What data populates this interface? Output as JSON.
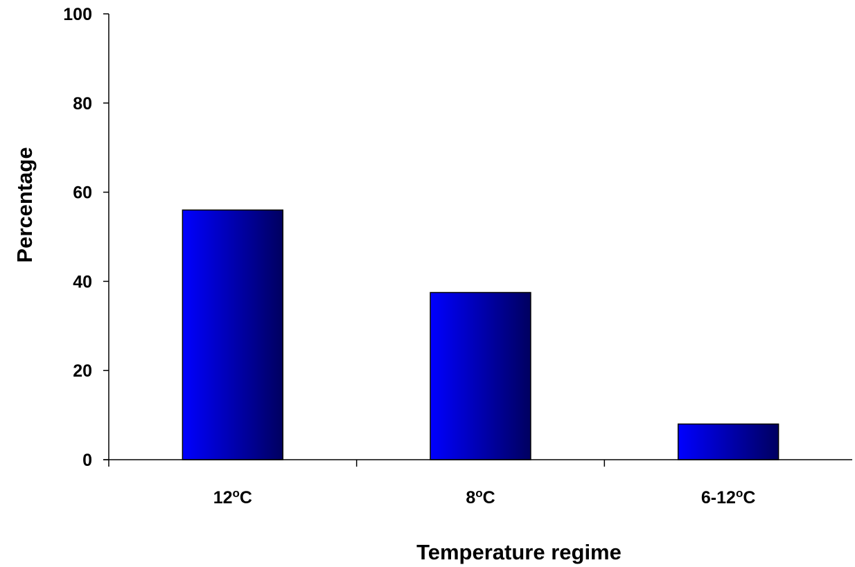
{
  "chart_data": {
    "type": "bar",
    "categories": [
      "12",
      "8",
      "6-12"
    ],
    "category_unit_sup": "o",
    "category_unit_suffix": "C",
    "values": [
      56,
      37.5,
      8
    ],
    "xlabel": "Temperature regime",
    "ylabel": "Percentage",
    "ylim": [
      0,
      100
    ],
    "yticks": [
      0,
      20,
      40,
      60,
      80,
      100
    ],
    "grid": false,
    "legend": "none",
    "colors": {
      "bar_light": "#0000FF",
      "bar_dark": "#000060",
      "axis": "#000000"
    }
  }
}
